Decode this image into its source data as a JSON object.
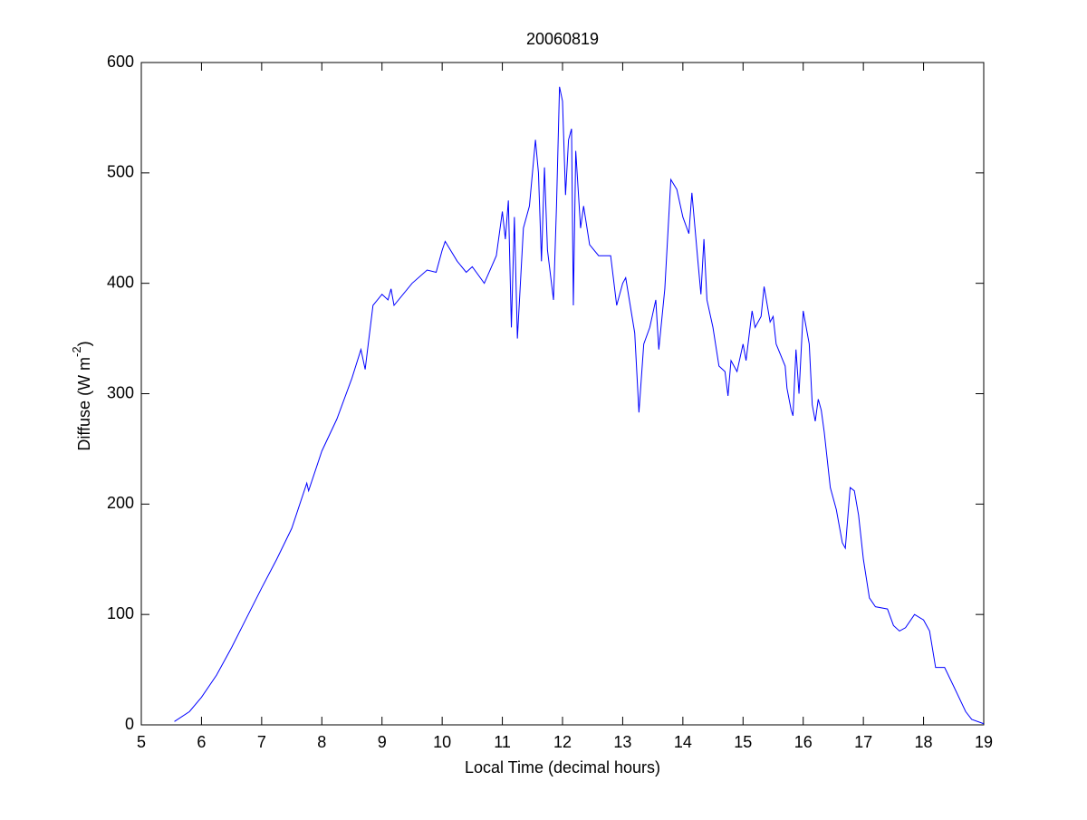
{
  "chart_data": {
    "type": "line",
    "title": "20060819",
    "xlabel": "Local Time (decimal hours)",
    "ylabel": "Diffuse (W m",
    "ylabel_superscript": "-2",
    "ylabel_suffix": ")",
    "color": "#0000ff",
    "xlim": [
      5,
      19
    ],
    "xticks": [
      5,
      6,
      7,
      8,
      9,
      10,
      11,
      12,
      13,
      14,
      15,
      16,
      17,
      18,
      19
    ],
    "ylim": [
      0,
      600
    ],
    "yticks": [
      0,
      100,
      200,
      300,
      400,
      500,
      600
    ],
    "grid": false,
    "x": [
      5.55,
      5.8,
      6.0,
      6.25,
      6.5,
      6.75,
      7.0,
      7.25,
      7.5,
      7.75,
      7.78,
      8.0,
      8.25,
      8.5,
      8.65,
      8.72,
      8.85,
      9.0,
      9.1,
      9.15,
      9.2,
      9.5,
      9.75,
      9.9,
      10.0,
      10.05,
      10.25,
      10.4,
      10.5,
      10.7,
      10.9,
      11.0,
      11.05,
      11.1,
      11.15,
      11.2,
      11.25,
      11.35,
      11.45,
      11.55,
      11.6,
      11.65,
      11.7,
      11.75,
      11.85,
      11.9,
      11.95,
      12.0,
      12.05,
      12.1,
      12.15,
      12.18,
      12.22,
      12.3,
      12.35,
      12.45,
      12.6,
      12.8,
      12.9,
      13.0,
      13.05,
      13.2,
      13.27,
      13.35,
      13.45,
      13.55,
      13.6,
      13.7,
      13.8,
      13.9,
      14.0,
      14.1,
      14.15,
      14.25,
      14.3,
      14.35,
      14.4,
      14.5,
      14.6,
      14.7,
      14.75,
      14.8,
      14.9,
      15.0,
      15.05,
      15.15,
      15.2,
      15.3,
      15.35,
      15.45,
      15.5,
      15.55,
      15.7,
      15.73,
      15.8,
      15.83,
      15.88,
      15.93,
      16.0,
      16.1,
      16.15,
      16.2,
      16.25,
      16.3,
      16.35,
      16.45,
      16.55,
      16.65,
      16.7,
      16.78,
      16.85,
      16.92,
      17.0,
      17.1,
      17.2,
      17.4,
      17.5,
      17.6,
      17.7,
      17.85,
      18.0,
      18.1,
      18.2,
      18.35,
      18.5,
      18.7,
      18.8,
      19.0
    ],
    "values": [
      3,
      12,
      25,
      45,
      70,
      97,
      124,
      150,
      178,
      219,
      212,
      248,
      277,
      314,
      340,
      322,
      380,
      390,
      385,
      395,
      380,
      400,
      412,
      410,
      430,
      438,
      420,
      410,
      415,
      400,
      425,
      465,
      440,
      475,
      360,
      460,
      350,
      450,
      470,
      530,
      500,
      420,
      505,
      430,
      385,
      470,
      578,
      565,
      480,
      530,
      540,
      380,
      520,
      450,
      470,
      435,
      425,
      425,
      380,
      400,
      405,
      355,
      283,
      345,
      360,
      385,
      340,
      395,
      494,
      485,
      460,
      445,
      482,
      420,
      390,
      440,
      385,
      360,
      325,
      320,
      298,
      330,
      320,
      345,
      330,
      375,
      360,
      370,
      397,
      365,
      370,
      345,
      325,
      305,
      285,
      280,
      340,
      300,
      375,
      345,
      290,
      275,
      295,
      285,
      265,
      215,
      195,
      165,
      160,
      215,
      212,
      190,
      150,
      115,
      107,
      105,
      90,
      85,
      88,
      100,
      95,
      85,
      52,
      52,
      35,
      12,
      5,
      1
    ]
  }
}
